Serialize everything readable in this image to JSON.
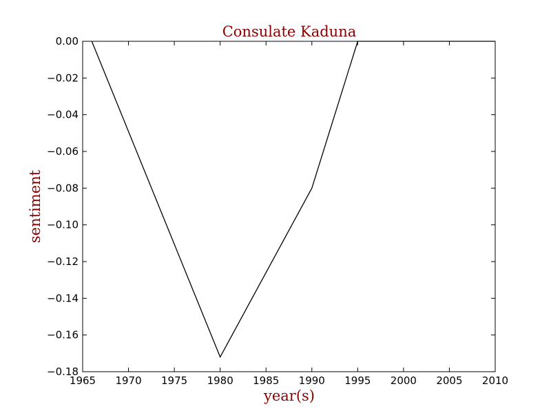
{
  "chart_data": {
    "type": "line",
    "title": "Consulate Kaduna",
    "xlabel": "year(s)",
    "ylabel": "sentiment",
    "xlim": [
      1965,
      2010
    ],
    "ylim": [
      -0.18,
      0.0
    ],
    "xticks": [
      1965,
      1970,
      1975,
      1980,
      1985,
      1990,
      1995,
      2000,
      2005,
      2010
    ],
    "yticks": [
      0.0,
      -0.02,
      -0.04,
      -0.06,
      -0.08,
      -0.1,
      -0.12,
      -0.14,
      -0.16,
      -0.18
    ],
    "xtick_labels": [
      "1965",
      "1970",
      "1975",
      "1980",
      "1985",
      "1990",
      "1995",
      "2000",
      "2005",
      "2010"
    ],
    "ytick_labels": [
      "0.00",
      "−0.02",
      "−0.04",
      "−0.06",
      "−0.08",
      "−0.10",
      "−0.12",
      "−0.14",
      "−0.16",
      "−0.18"
    ],
    "grid": false,
    "series": [
      {
        "x": [
          1966,
          1980,
          1990,
          1995,
          2000,
          2005,
          2010
        ],
        "y": [
          0.0,
          -0.172,
          -0.08,
          0.0,
          0.0,
          0.0,
          0.0
        ],
        "color": "#000000"
      }
    ],
    "colors": {
      "title": "#8b0000",
      "axis_label": "#8b0000",
      "line": "#000000"
    }
  }
}
